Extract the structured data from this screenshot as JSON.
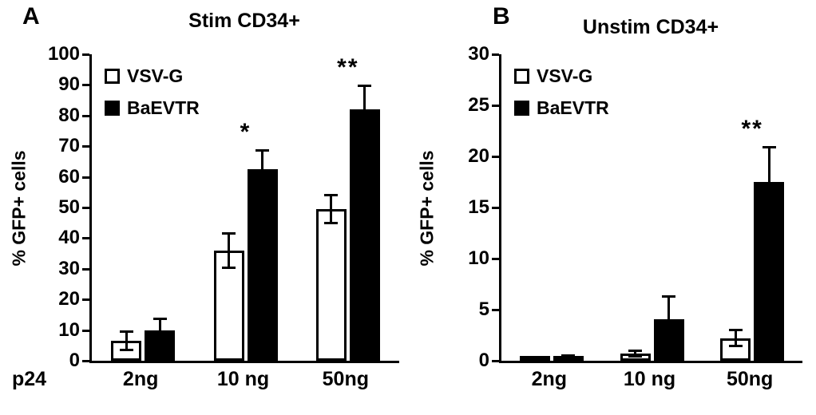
{
  "chart_data": [
    {
      "type": "bar",
      "panel": "A",
      "title": "Stim CD34+",
      "ylabel": "% GFP+ cells",
      "xlabel": "p24",
      "categories": [
        "2ng",
        "10 ng",
        "50ng"
      ],
      "series": [
        {
          "name": "VSV-G",
          "fill": "#ffffff",
          "values": [
            6.5,
            36,
            49.5
          ],
          "errors": [
            3.5,
            6,
            5
          ]
        },
        {
          "name": "BaEVTR",
          "fill": "#000000",
          "values": [
            10,
            62.5,
            82
          ],
          "errors": [
            4,
            6.5,
            8
          ]
        }
      ],
      "ylim": [
        0,
        100
      ],
      "ytick_step": 10,
      "grid": false,
      "legend_position": "top-left",
      "significance": [
        {
          "category": "10 ng",
          "series": "BaEVTR",
          "marker": "*"
        },
        {
          "category": "50ng",
          "series": "BaEVTR",
          "marker": "**"
        }
      ]
    },
    {
      "type": "bar",
      "panel": "B",
      "title": "Unstim CD34+",
      "ylabel": "% GFP+ cells",
      "xlabel": "",
      "categories": [
        "2ng",
        "10 ng",
        "50ng"
      ],
      "series": [
        {
          "name": "VSV-G",
          "fill": "#ffffff",
          "values": [
            0.15,
            0.7,
            2.2
          ],
          "errors": [
            0.15,
            0.4,
            0.9
          ]
        },
        {
          "name": "BaEVTR",
          "fill": "#000000",
          "values": [
            0.3,
            4.1,
            17.5
          ],
          "errors": [
            0.3,
            2.3,
            3.5
          ]
        }
      ],
      "ylim": [
        0,
        30
      ],
      "ytick_step": 5,
      "grid": false,
      "legend_position": "top-left",
      "significance": [
        {
          "category": "50ng",
          "series": "BaEVTR",
          "marker": "**"
        }
      ]
    }
  ]
}
